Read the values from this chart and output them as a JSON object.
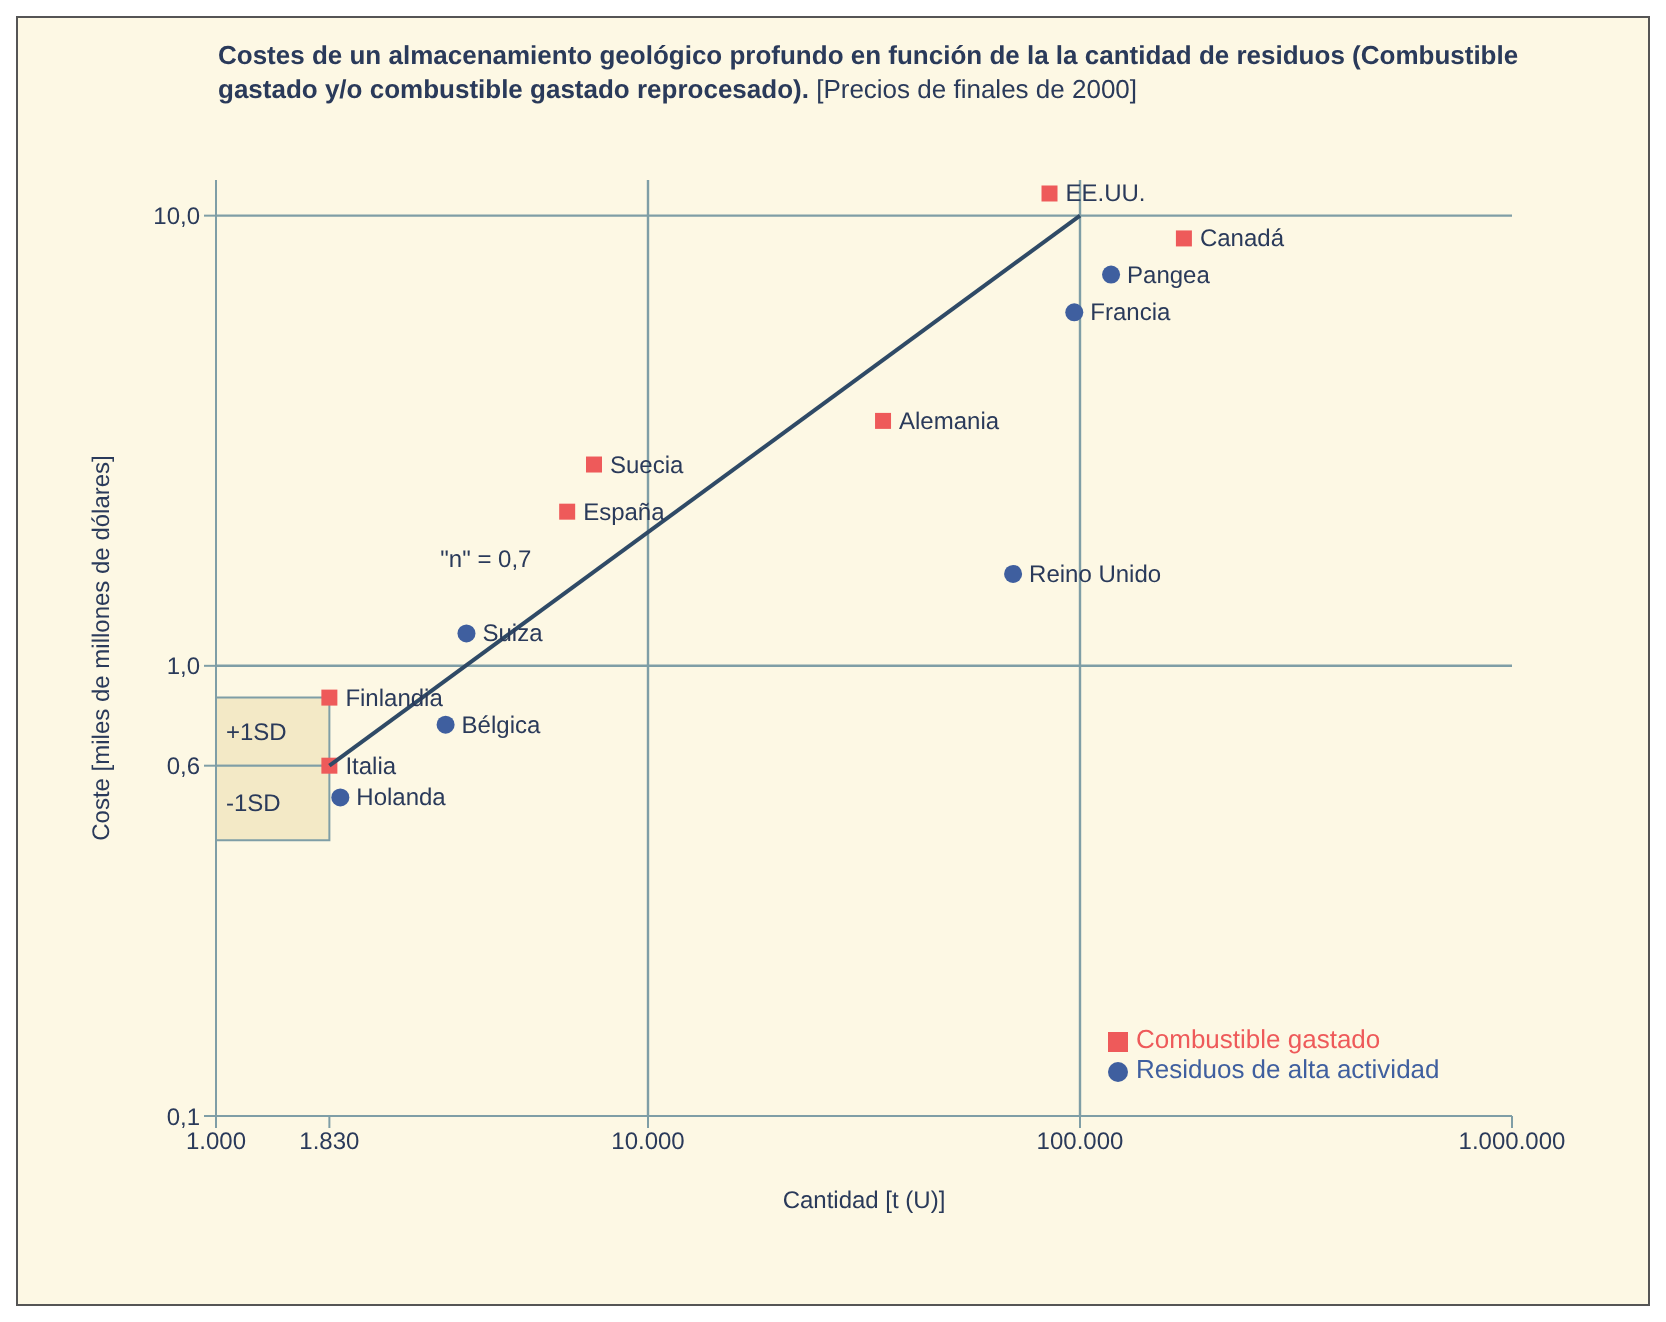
{
  "chart_data": {
    "type": "scatter",
    "title": "Costes de un almacenamiento geológico profundo en función de la la cantidad de residuos (Combustible gastado y/o combustible gastado reprocesado).",
    "subtitle": "[Precios de finales de 2000]",
    "xlabel": "Cantidad [t (U)]",
    "ylabel": "Coste [miles de millones de dólares]",
    "log": "xy",
    "xlim": [
      1000,
      1000000
    ],
    "ylim": [
      0.1,
      12
    ],
    "xticks": [
      {
        "value": 1000,
        "label": "1.000"
      },
      {
        "value": 1830,
        "label": "1.830"
      },
      {
        "value": 10000,
        "label": "10.000"
      },
      {
        "value": 100000,
        "label": "100.000"
      },
      {
        "value": 1000000,
        "label": "1.000.000"
      }
    ],
    "yticks": [
      {
        "value": 0.1,
        "label": "0,1"
      },
      {
        "value": 0.6,
        "label": "0,6"
      },
      {
        "value": 1,
        "label": "1,0"
      },
      {
        "value": 10,
        "label": "10,0"
      }
    ],
    "grid": false,
    "legend": "bottom right",
    "series": [
      {
        "name": "Combustible gastado",
        "type": "scatter",
        "marker": "square",
        "color": "#ee5a5a",
        "x": [
          85000,
          174000,
          35000,
          7500,
          6500,
          1830,
          1830
        ],
        "values": [
          11.2,
          8.9,
          3.5,
          2.8,
          2.2,
          0.85,
          0.6
        ]
      },
      {
        "name": "Residuos de alta actividad",
        "type": "scatter",
        "marker": "circle",
        "color": "#3f5f9f",
        "x": [
          118000,
          97000,
          70000,
          3800,
          3400,
          1940
        ],
        "values": [
          7.4,
          6.1,
          1.6,
          1.18,
          0.74,
          0.51
        ]
      },
      {
        "name": "\"n\" = 0,7",
        "type": "line",
        "marker": "none",
        "color": "#2f4a66",
        "x": [
          1830,
          100000
        ],
        "values": [
          0.6,
          10
        ]
      }
    ],
    "bands": [
      {
        "axis": "y",
        "from": 0.6,
        "to": 0.85,
        "label": "+1SD",
        "color": "#f3e9c6"
      },
      {
        "axis": "y",
        "from": 0.41,
        "to": 0.6,
        "label": "-1SD",
        "color": "#f3e9c6"
      }
    ],
    "ref_lines": [
      {
        "axis": "y",
        "value": 10,
        "color": "#7f9ea6"
      },
      {
        "axis": "x",
        "value": 10000,
        "color": "#7f9ea6"
      },
      {
        "axis": "x",
        "value": 100000,
        "color": "#7f9ea6"
      },
      {
        "axis": "y",
        "value": 1,
        "color": "#7f9ea6"
      }
    ],
    "annotations": [
      {
        "text": "EE.UU.",
        "x": 85000,
        "y": 11.2
      },
      {
        "text": "Canadá",
        "x": 174000,
        "y": 8.9
      },
      {
        "text": "Alemania",
        "x": 35000,
        "y": 3.5
      },
      {
        "text": "Suecia",
        "x": 7500,
        "y": 2.8
      },
      {
        "text": "España",
        "x": 6500,
        "y": 2.2
      },
      {
        "text": "Finlandia",
        "x": 1830,
        "y": 0.85
      },
      {
        "text": "Italia",
        "x": 1830,
        "y": 0.6
      },
      {
        "text": "Pangea",
        "x": 118000,
        "y": 7.4
      },
      {
        "text": "Francia",
        "x": 97000,
        "y": 6.1
      },
      {
        "text": "Reino Unido",
        "x": 70000,
        "y": 1.6
      },
      {
        "text": "Suiza",
        "x": 3800,
        "y": 1.18
      },
      {
        "text": "Bélgica",
        "x": 3400,
        "y": 0.74
      },
      {
        "text": "Holanda",
        "x": 1940,
        "y": 0.51
      }
    ]
  }
}
